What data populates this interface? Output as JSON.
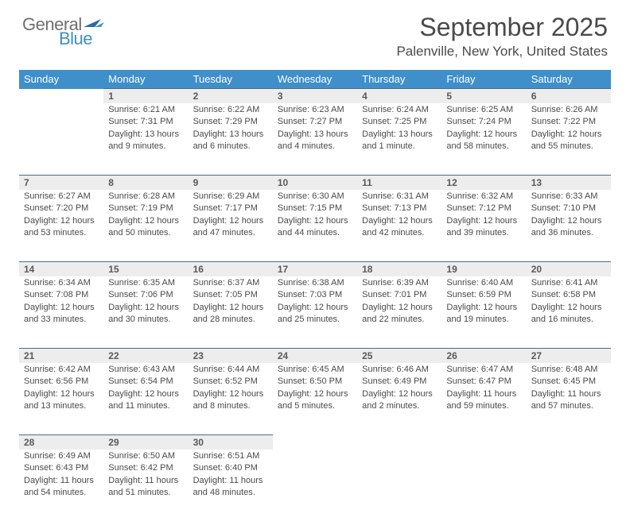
{
  "logo": {
    "top": "General",
    "bottom": "Blue",
    "flag_colors": [
      "#2d6aa3",
      "#3f8fca"
    ]
  },
  "header": {
    "month_title": "September 2025",
    "location": "Palenville, New York, United States"
  },
  "style": {
    "header_bg": "#3f8fca",
    "daynum_bg": "#ededed",
    "daynum_border": "#4b6c8a",
    "text_color": "#4a4a4a",
    "header_text_color": "#ffffff",
    "title_fontsize": 32,
    "location_fontsize": 17,
    "dayheader_fontsize": 13,
    "cell_fontsize": 11
  },
  "day_headers": [
    "Sunday",
    "Monday",
    "Tuesday",
    "Wednesday",
    "Thursday",
    "Friday",
    "Saturday"
  ],
  "weeks": [
    {
      "nums": [
        "",
        "1",
        "2",
        "3",
        "4",
        "5",
        "6"
      ],
      "cells": [
        null,
        {
          "sunrise": "Sunrise: 6:21 AM",
          "sunset": "Sunset: 7:31 PM",
          "daylight1": "Daylight: 13 hours",
          "daylight2": "and 9 minutes."
        },
        {
          "sunrise": "Sunrise: 6:22 AM",
          "sunset": "Sunset: 7:29 PM",
          "daylight1": "Daylight: 13 hours",
          "daylight2": "and 6 minutes."
        },
        {
          "sunrise": "Sunrise: 6:23 AM",
          "sunset": "Sunset: 7:27 PM",
          "daylight1": "Daylight: 13 hours",
          "daylight2": "and 4 minutes."
        },
        {
          "sunrise": "Sunrise: 6:24 AM",
          "sunset": "Sunset: 7:25 PM",
          "daylight1": "Daylight: 13 hours",
          "daylight2": "and 1 minute."
        },
        {
          "sunrise": "Sunrise: 6:25 AM",
          "sunset": "Sunset: 7:24 PM",
          "daylight1": "Daylight: 12 hours",
          "daylight2": "and 58 minutes."
        },
        {
          "sunrise": "Sunrise: 6:26 AM",
          "sunset": "Sunset: 7:22 PM",
          "daylight1": "Daylight: 12 hours",
          "daylight2": "and 55 minutes."
        }
      ]
    },
    {
      "nums": [
        "7",
        "8",
        "9",
        "10",
        "11",
        "12",
        "13"
      ],
      "cells": [
        {
          "sunrise": "Sunrise: 6:27 AM",
          "sunset": "Sunset: 7:20 PM",
          "daylight1": "Daylight: 12 hours",
          "daylight2": "and 53 minutes."
        },
        {
          "sunrise": "Sunrise: 6:28 AM",
          "sunset": "Sunset: 7:19 PM",
          "daylight1": "Daylight: 12 hours",
          "daylight2": "and 50 minutes."
        },
        {
          "sunrise": "Sunrise: 6:29 AM",
          "sunset": "Sunset: 7:17 PM",
          "daylight1": "Daylight: 12 hours",
          "daylight2": "and 47 minutes."
        },
        {
          "sunrise": "Sunrise: 6:30 AM",
          "sunset": "Sunset: 7:15 PM",
          "daylight1": "Daylight: 12 hours",
          "daylight2": "and 44 minutes."
        },
        {
          "sunrise": "Sunrise: 6:31 AM",
          "sunset": "Sunset: 7:13 PM",
          "daylight1": "Daylight: 12 hours",
          "daylight2": "and 42 minutes."
        },
        {
          "sunrise": "Sunrise: 6:32 AM",
          "sunset": "Sunset: 7:12 PM",
          "daylight1": "Daylight: 12 hours",
          "daylight2": "and 39 minutes."
        },
        {
          "sunrise": "Sunrise: 6:33 AM",
          "sunset": "Sunset: 7:10 PM",
          "daylight1": "Daylight: 12 hours",
          "daylight2": "and 36 minutes."
        }
      ]
    },
    {
      "nums": [
        "14",
        "15",
        "16",
        "17",
        "18",
        "19",
        "20"
      ],
      "cells": [
        {
          "sunrise": "Sunrise: 6:34 AM",
          "sunset": "Sunset: 7:08 PM",
          "daylight1": "Daylight: 12 hours",
          "daylight2": "and 33 minutes."
        },
        {
          "sunrise": "Sunrise: 6:35 AM",
          "sunset": "Sunset: 7:06 PM",
          "daylight1": "Daylight: 12 hours",
          "daylight2": "and 30 minutes."
        },
        {
          "sunrise": "Sunrise: 6:37 AM",
          "sunset": "Sunset: 7:05 PM",
          "daylight1": "Daylight: 12 hours",
          "daylight2": "and 28 minutes."
        },
        {
          "sunrise": "Sunrise: 6:38 AM",
          "sunset": "Sunset: 7:03 PM",
          "daylight1": "Daylight: 12 hours",
          "daylight2": "and 25 minutes."
        },
        {
          "sunrise": "Sunrise: 6:39 AM",
          "sunset": "Sunset: 7:01 PM",
          "daylight1": "Daylight: 12 hours",
          "daylight2": "and 22 minutes."
        },
        {
          "sunrise": "Sunrise: 6:40 AM",
          "sunset": "Sunset: 6:59 PM",
          "daylight1": "Daylight: 12 hours",
          "daylight2": "and 19 minutes."
        },
        {
          "sunrise": "Sunrise: 6:41 AM",
          "sunset": "Sunset: 6:58 PM",
          "daylight1": "Daylight: 12 hours",
          "daylight2": "and 16 minutes."
        }
      ]
    },
    {
      "nums": [
        "21",
        "22",
        "23",
        "24",
        "25",
        "26",
        "27"
      ],
      "cells": [
        {
          "sunrise": "Sunrise: 6:42 AM",
          "sunset": "Sunset: 6:56 PM",
          "daylight1": "Daylight: 12 hours",
          "daylight2": "and 13 minutes."
        },
        {
          "sunrise": "Sunrise: 6:43 AM",
          "sunset": "Sunset: 6:54 PM",
          "daylight1": "Daylight: 12 hours",
          "daylight2": "and 11 minutes."
        },
        {
          "sunrise": "Sunrise: 6:44 AM",
          "sunset": "Sunset: 6:52 PM",
          "daylight1": "Daylight: 12 hours",
          "daylight2": "and 8 minutes."
        },
        {
          "sunrise": "Sunrise: 6:45 AM",
          "sunset": "Sunset: 6:50 PM",
          "daylight1": "Daylight: 12 hours",
          "daylight2": "and 5 minutes."
        },
        {
          "sunrise": "Sunrise: 6:46 AM",
          "sunset": "Sunset: 6:49 PM",
          "daylight1": "Daylight: 12 hours",
          "daylight2": "and 2 minutes."
        },
        {
          "sunrise": "Sunrise: 6:47 AM",
          "sunset": "Sunset: 6:47 PM",
          "daylight1": "Daylight: 11 hours",
          "daylight2": "and 59 minutes."
        },
        {
          "sunrise": "Sunrise: 6:48 AM",
          "sunset": "Sunset: 6:45 PM",
          "daylight1": "Daylight: 11 hours",
          "daylight2": "and 57 minutes."
        }
      ]
    },
    {
      "nums": [
        "28",
        "29",
        "30",
        "",
        "",
        "",
        ""
      ],
      "cells": [
        {
          "sunrise": "Sunrise: 6:49 AM",
          "sunset": "Sunset: 6:43 PM",
          "daylight1": "Daylight: 11 hours",
          "daylight2": "and 54 minutes."
        },
        {
          "sunrise": "Sunrise: 6:50 AM",
          "sunset": "Sunset: 6:42 PM",
          "daylight1": "Daylight: 11 hours",
          "daylight2": "and 51 minutes."
        },
        {
          "sunrise": "Sunrise: 6:51 AM",
          "sunset": "Sunset: 6:40 PM",
          "daylight1": "Daylight: 11 hours",
          "daylight2": "and 48 minutes."
        },
        null,
        null,
        null,
        null
      ]
    }
  ]
}
